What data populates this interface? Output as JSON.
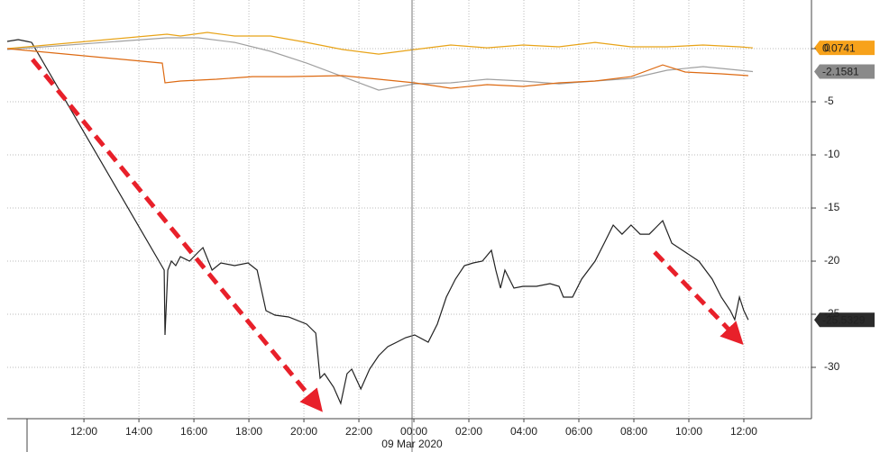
{
  "chart_data": {
    "type": "line",
    "date_label": "09 Mar 2020",
    "xlim": [
      9.21,
      38.46
    ],
    "ylim": [
      -34.83,
      4.58
    ],
    "grid": true,
    "xticks": [
      {
        "value": 12,
        "label": "12:00"
      },
      {
        "value": 14,
        "label": "14:00"
      },
      {
        "value": 16,
        "label": "16:00"
      },
      {
        "value": 18,
        "label": "18:00"
      },
      {
        "value": 20,
        "label": "20:00"
      },
      {
        "value": 22,
        "label": "22:00"
      },
      {
        "value": 24,
        "label": "00:00"
      },
      {
        "value": 26,
        "label": "02:00"
      },
      {
        "value": 28,
        "label": "04:00"
      },
      {
        "value": 30,
        "label": "06:00"
      },
      {
        "value": 32,
        "label": "08:00"
      },
      {
        "value": 34,
        "label": "10:00"
      },
      {
        "value": 36,
        "label": "12:00"
      }
    ],
    "yticks": [
      0,
      -5,
      -10,
      -15,
      -20,
      -25,
      -30
    ],
    "series": [
      {
        "color": "#222222",
        "label_box": "#2b2b2b",
        "label_text_color": "#ffffff",
        "x": [
          9.21,
          9.61,
          9.93,
          10.1,
          14.92,
          14.95,
          15.05,
          15.18,
          15.34,
          15.51,
          15.84,
          16.16,
          16.33,
          16.66,
          16.98,
          17.48,
          17.97,
          18.3,
          18.62,
          18.95,
          19.44,
          20.1,
          20.43,
          20.59,
          20.75,
          21.08,
          21.34,
          21.57,
          21.74,
          22.07,
          22.39,
          22.72,
          23.05,
          23.38,
          23.7,
          24.03,
          24.52,
          24.85,
          25.18,
          25.51,
          25.84,
          26.16,
          26.49,
          26.82,
          26.98,
          27.15,
          27.31,
          27.64,
          27.97,
          28.46,
          28.95,
          29.28,
          29.44,
          29.77,
          30.1,
          30.59,
          30.92,
          31.25,
          31.57,
          31.9,
          32.23,
          32.56,
          32.89,
          33.05,
          33.38,
          33.87,
          34.36,
          34.85,
          35.18,
          35.51,
          35.67,
          35.84,
          36.0,
          36.16
        ],
        "values": [
          0.68,
          0.85,
          0.68,
          0.59,
          -20.85,
          -26.95,
          -20.85,
          -20.0,
          -20.42,
          -19.58,
          -20.0,
          -19.15,
          -18.73,
          -20.85,
          -20.17,
          -20.42,
          -20.17,
          -20.85,
          -24.66,
          -25.08,
          -25.25,
          -25.93,
          -26.78,
          -31.02,
          -30.59,
          -31.86,
          -33.39,
          -30.59,
          -30.17,
          -32.03,
          -30.17,
          -28.9,
          -28.05,
          -27.63,
          -27.2,
          -26.95,
          -27.63,
          -25.93,
          -23.39,
          -21.69,
          -20.42,
          -20.17,
          -20.0,
          -18.98,
          -20.85,
          -22.54,
          -20.85,
          -22.54,
          -22.37,
          -22.37,
          -22.12,
          -22.37,
          -23.39,
          -23.39,
          -21.69,
          -20.0,
          -18.31,
          -16.61,
          -17.46,
          -16.61,
          -17.46,
          -17.46,
          -16.61,
          -16.19,
          -18.31,
          -19.15,
          -20.0,
          -21.69,
          -23.39,
          -24.66,
          -25.51,
          -23.39,
          -24.66,
          -25.5329
        ]
      },
      {
        "color": "#e8a317",
        "label_box": "#f7a21b",
        "label_text_color": "#000000",
        "x": [
          9.21,
          15.02,
          15.51,
          16.49,
          17.48,
          18.79,
          20.1,
          21.41,
          22.72,
          24.03,
          25.34,
          26.66,
          27.97,
          29.28,
          30.59,
          31.9,
          33.21,
          34.52,
          35.84,
          36.33
        ],
        "values": [
          0,
          1.36,
          1.19,
          1.53,
          1.19,
          1.19,
          0.59,
          -0.08,
          -0.51,
          -0.08,
          0.34,
          0.08,
          0.34,
          0.17,
          0.59,
          0.17,
          0.17,
          0.34,
          0.17,
          0.0741
        ]
      },
      {
        "color": "#a0a0a0",
        "label_box": "#8a8a8a",
        "label_text_color": "#ffffff",
        "x": [
          9.21,
          15.02,
          16.16,
          17.48,
          18.79,
          20.1,
          21.41,
          22.72,
          24.03,
          25.34,
          26.66,
          27.97,
          29.28,
          30.59,
          31.9,
          33.21,
          34.52,
          35.51,
          36.33
        ],
        "values": [
          -0.08,
          1.02,
          1.02,
          0.59,
          -0.25,
          -1.36,
          -2.63,
          -3.9,
          -3.31,
          -3.22,
          -2.88,
          -3.05,
          -3.31,
          -3.05,
          -2.8,
          -2.03,
          -1.69,
          -1.95,
          -2.1581
        ]
      },
      {
        "color": "#dd6a12",
        "x": [
          9.21,
          14.85,
          14.95,
          15.51,
          16.82,
          18.13,
          19.44,
          21.41,
          22.72,
          24.03,
          25.34,
          26.66,
          27.97,
          29.28,
          30.59,
          31.9,
          33.05,
          33.87,
          35.18,
          36.16
        ],
        "values": [
          0,
          -1.36,
          -3.22,
          -3.05,
          -2.88,
          -2.63,
          -2.63,
          -2.54,
          -2.88,
          -3.22,
          -3.73,
          -3.39,
          -3.56,
          -3.22,
          -3.05,
          -2.63,
          -1.53,
          -2.2,
          -2.37,
          -2.54
        ]
      }
    ]
  }
}
